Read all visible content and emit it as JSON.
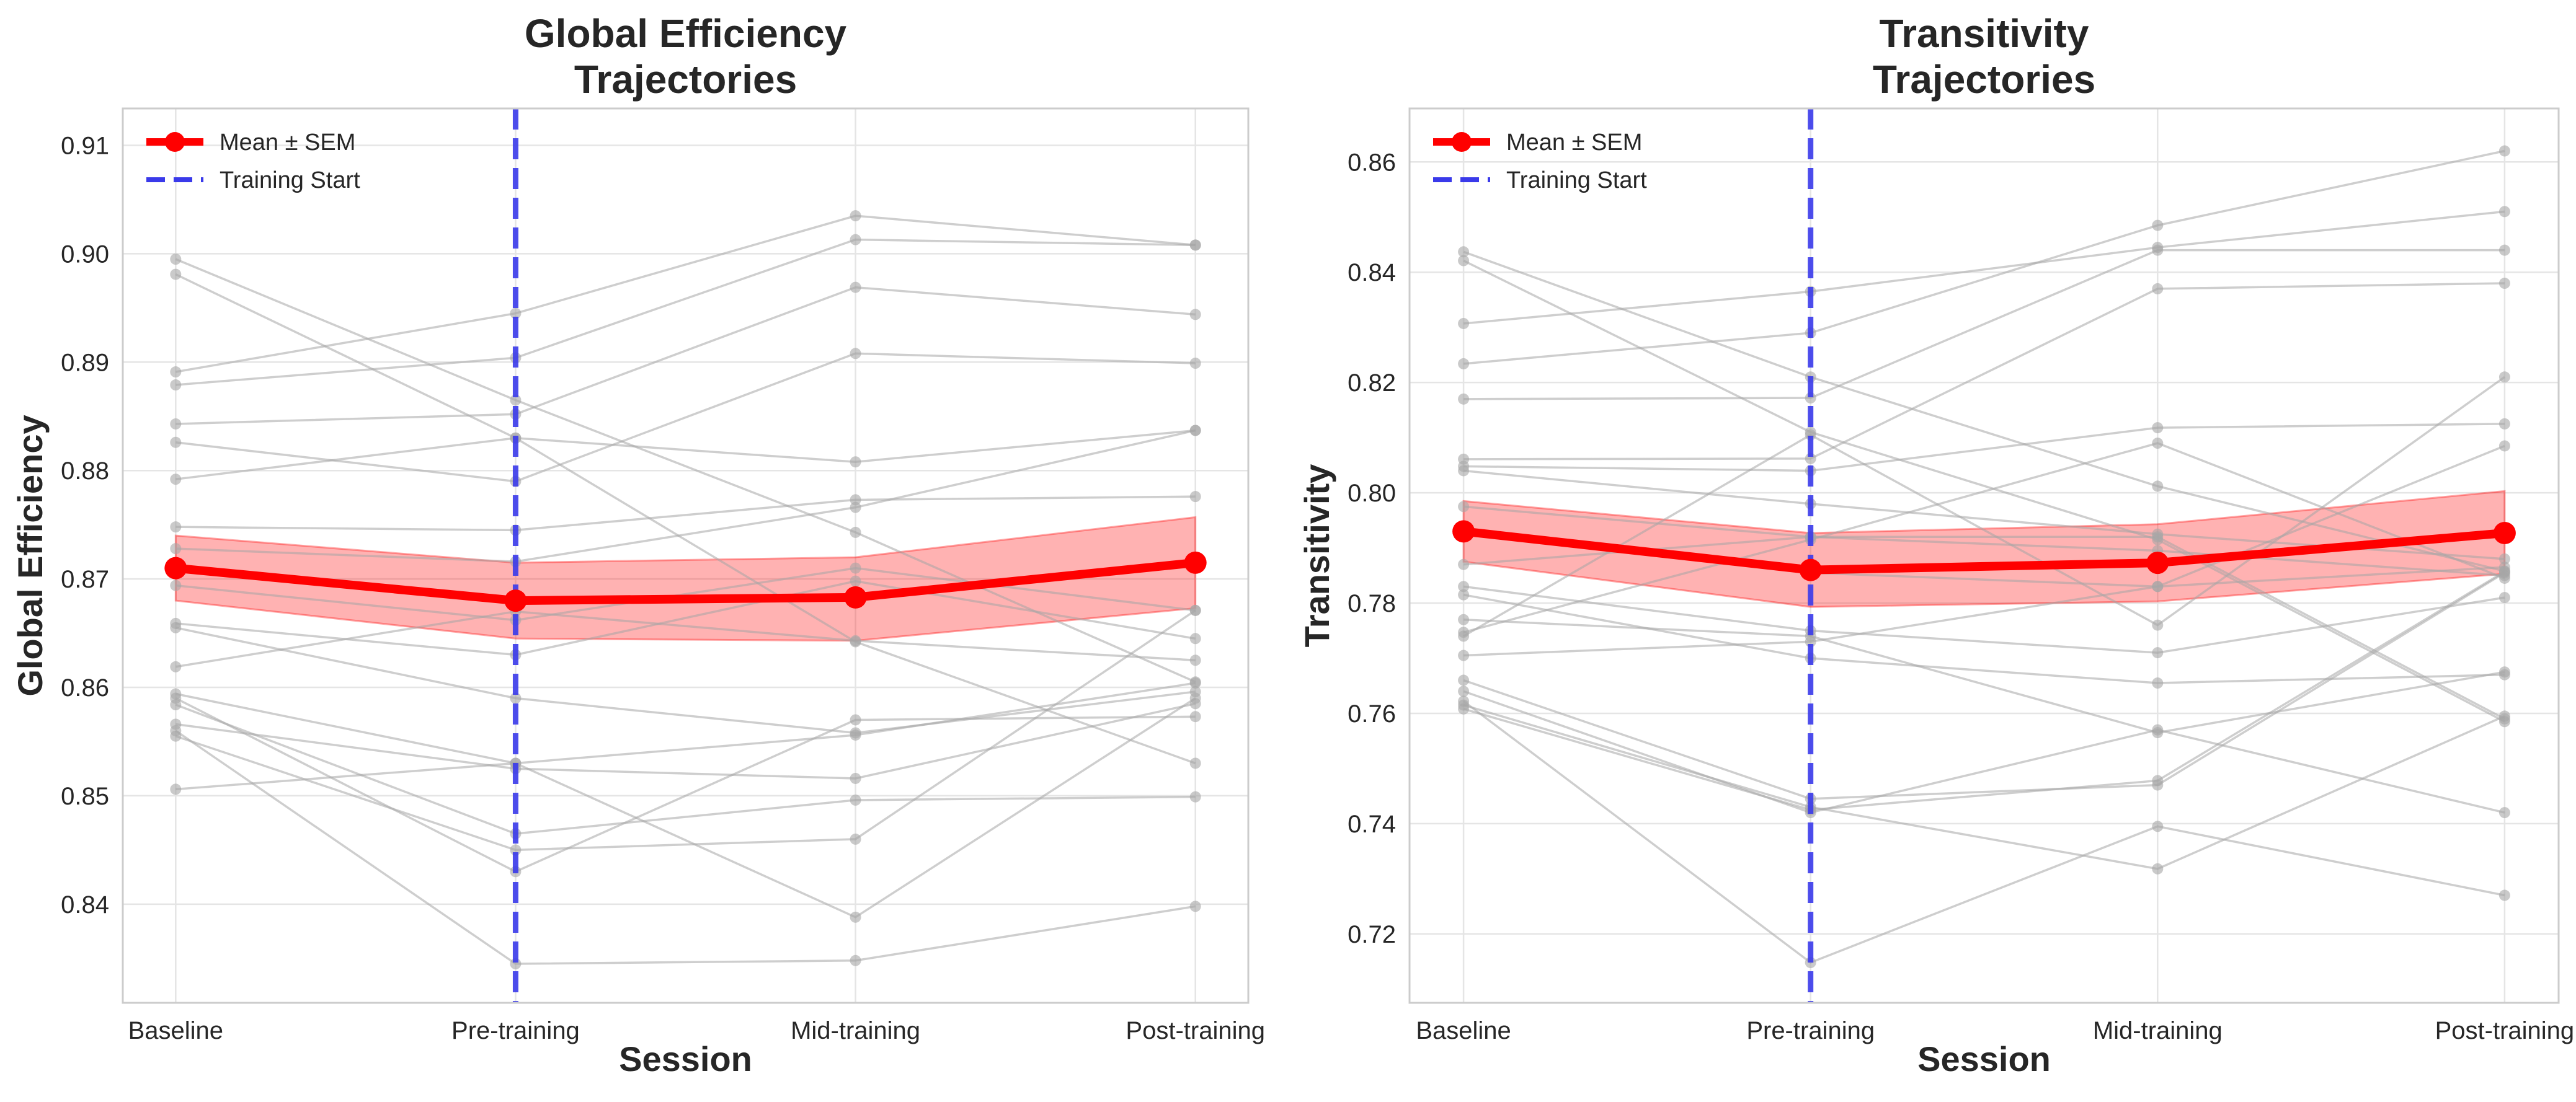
{
  "colors": {
    "mean": "#ff0000",
    "sem_fill": "#ff0000",
    "subject": "#a6a6a6",
    "training_start": "#3a3aea",
    "grid": "#e5e5e5"
  },
  "chart_data": [
    {
      "type": "line",
      "title": [
        "Global Efficiency",
        "Trajectories"
      ],
      "xlabel": "Session",
      "ylabel": "Global Efficiency",
      "categories": [
        "Baseline",
        "Pre-training",
        "Mid-training",
        "Post-training"
      ],
      "ylim": [
        0.8309,
        0.9134
      ],
      "yticks": [
        0.84,
        0.85,
        0.86,
        0.87,
        0.88,
        0.89,
        0.9,
        0.91
      ],
      "ytick_labels": [
        "0.84",
        "0.85",
        "0.86",
        "0.87",
        "0.88",
        "0.89",
        "0.90",
        "0.91"
      ],
      "grid": true,
      "legend_position": "top-left",
      "legend": [
        "Mean ± SEM",
        "Training Start"
      ],
      "mean": {
        "name": "Mean ± SEM",
        "values": [
          0.871,
          0.868,
          0.8683,
          0.8715
        ],
        "sem_lower": [
          0.868,
          0.8645,
          0.8643,
          0.8673
        ],
        "sem_upper": [
          0.874,
          0.8715,
          0.872,
          0.8757
        ]
      },
      "training_start_category": "Pre-training",
      "subjects": [
        [
          0.8995,
          0.8865,
          0.8743,
          0.8605
        ],
        [
          0.8981,
          0.883,
          0.8642,
          0.853
        ],
        [
          0.8891,
          0.8945,
          0.9035,
          0.9008
        ],
        [
          0.8879,
          0.8904,
          0.9013,
          0.9008
        ],
        [
          0.8843,
          0.8852,
          0.8969,
          0.8944
        ],
        [
          0.8826,
          0.879,
          0.8908,
          0.8899
        ],
        [
          0.8792,
          0.883,
          0.8808,
          0.8837
        ],
        [
          0.8748,
          0.8745,
          0.8773,
          0.8776
        ],
        [
          0.8728,
          0.8716,
          0.8766,
          0.8837
        ],
        [
          0.8694,
          0.8662,
          0.871,
          0.8671
        ],
        [
          0.8659,
          0.863,
          0.8698,
          0.8645
        ],
        [
          0.8655,
          0.859,
          0.8558,
          0.8596
        ],
        [
          0.8619,
          0.867,
          0.8643,
          0.8625
        ],
        [
          0.8594,
          0.853,
          0.8556,
          0.8604
        ],
        [
          0.859,
          0.843,
          0.857,
          0.8573
        ],
        [
          0.8584,
          0.8465,
          0.8496,
          0.8499
        ],
        [
          0.8566,
          0.8525,
          0.8516,
          0.8585
        ],
        [
          0.8555,
          0.845,
          0.846,
          0.8671
        ],
        [
          0.8506,
          0.853,
          0.8388,
          0.859
        ],
        [
          0.856,
          0.8345,
          0.8348,
          0.8398
        ]
      ]
    },
    {
      "type": "line",
      "title": [
        "Transitivity",
        "Trajectories"
      ],
      "xlabel": "Session",
      "ylabel": "Transitivity",
      "categories": [
        "Baseline",
        "Pre-training",
        "Mid-training",
        "Post-training"
      ],
      "ylim": [
        0.7075,
        0.8697
      ],
      "yticks": [
        0.72,
        0.74,
        0.76,
        0.78,
        0.8,
        0.82,
        0.84,
        0.86
      ],
      "ytick_labels": [
        "0.72",
        "0.74",
        "0.76",
        "0.78",
        "0.80",
        "0.82",
        "0.84",
        "0.86"
      ],
      "grid": true,
      "legend_position": "top-left",
      "legend": [
        "Mean ± SEM",
        "Training Start"
      ],
      "mean": {
        "name": "Mean ± SEM",
        "values": [
          0.793,
          0.786,
          0.7873,
          0.7927
        ],
        "sem_lower": [
          0.7875,
          0.7793,
          0.7803,
          0.7853
        ],
        "sem_upper": [
          0.7985,
          0.7927,
          0.7943,
          0.8003
        ]
      },
      "training_start_category": "Pre-training",
      "subjects": [
        [
          0.8437,
          0.821,
          0.8012,
          0.7858
        ],
        [
          0.8421,
          0.811,
          0.7915,
          0.7585
        ],
        [
          0.8307,
          0.8365,
          0.8445,
          0.851
        ],
        [
          0.8234,
          0.829,
          0.8485,
          0.862
        ],
        [
          0.817,
          0.8172,
          0.844,
          0.844
        ],
        [
          0.8061,
          0.8062,
          0.837,
          0.838
        ],
        [
          0.8048,
          0.804,
          0.8118,
          0.8125
        ],
        [
          0.804,
          0.798,
          0.7925,
          0.788
        ],
        [
          0.7975,
          0.792,
          0.7895,
          0.785
        ],
        [
          0.7925,
          0.7855,
          0.783,
          0.7865
        ],
        [
          0.787,
          0.792,
          0.792,
          0.759
        ],
        [
          0.783,
          0.775,
          0.771,
          0.781
        ],
        [
          0.7815,
          0.77,
          0.7655,
          0.767
        ],
        [
          0.777,
          0.774,
          0.7565,
          0.7675
        ],
        [
          0.7747,
          0.7915,
          0.809,
          0.7845
        ],
        [
          0.774,
          0.8105,
          0.776,
          0.821
        ],
        [
          0.7705,
          0.773,
          0.783,
          0.8085
        ],
        [
          0.766,
          0.7445,
          0.747,
          0.7855
        ],
        [
          0.764,
          0.742,
          0.757,
          0.742
        ],
        [
          0.7615,
          0.743,
          0.7318,
          0.7595
        ],
        [
          0.7608,
          0.7425,
          0.7478,
          0.7857
        ],
        [
          0.7622,
          0.7148,
          0.7395,
          0.727
        ]
      ]
    }
  ]
}
